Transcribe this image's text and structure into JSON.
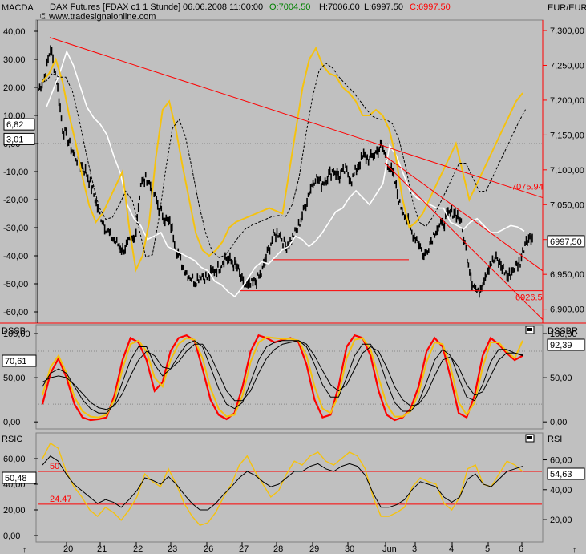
{
  "header": {
    "symbol": "DAX Futures [FDAX c1  1 Stunde]",
    "timestamp": "06.06.2008 11:00:00",
    "open": "O:7004.50",
    "high": "H:7006.00",
    "low": "L:6997.50",
    "close": "C:6997.50",
    "source": "© www.tradesignalonline.com"
  },
  "colors": {
    "price": "#000000",
    "macd": "#f5c20e",
    "white_line": "#ffffff",
    "trend": "#ff0000",
    "dssb_red": "#ff0000"
  },
  "panels": {
    "main": {
      "left_label": "MACDA",
      "right_label": "EUR/EUR"
    },
    "dss": {
      "left_label": "DSSB",
      "right_label": "DSSBR"
    },
    "rsi": {
      "left_label": "RSIC",
      "right_label": "RSI"
    }
  },
  "chart_data": [
    {
      "type": "line",
      "panel": "main",
      "x_ticks": [
        "20",
        "21",
        "22",
        "23",
        "26",
        "27",
        "28",
        "29",
        "30",
        "Jun",
        "3",
        "4",
        "5",
        "6"
      ],
      "left_axis": {
        "ticks": [
          "40,00",
          "30,00",
          "20,00",
          "10,00",
          "0,00",
          "-10,00",
          "-20,00",
          "-30,00",
          "-40,00",
          "-50,00",
          "-60,00"
        ],
        "range": [
          -64,
          44
        ]
      },
      "right_axis": {
        "ticks": [
          "7,300,00",
          "7,250,00",
          "7,200,00",
          "7,150,00",
          "7,100,00",
          "7,050,00",
          "7,000,00",
          "6,950,00",
          "6,900,00"
        ],
        "range": [
          6880,
          7315
        ]
      },
      "last_price": "6997,50",
      "macd_value": "6,82",
      "signal_value": "3,01",
      "levels": [
        {
          "label": "7075.94",
          "value": 7075.94
        },
        {
          "label": "6926.5",
          "value": 6926.5
        }
      ],
      "price_points": [
        7215,
        7232,
        7275,
        7230,
        7160,
        7140,
        7120,
        7108,
        7095,
        7070,
        7040,
        7020,
        7005,
        6995,
        6985,
        6995,
        7000,
        7080,
        7088,
        7070,
        7045,
        7030,
        7020,
        6985,
        6960,
        6948,
        6940,
        6950,
        6945,
        6955,
        6960,
        6975,
        6968,
        6960,
        6935,
        6932,
        6940,
        6950,
        6980,
        7005,
        7010,
        6990,
        7000,
        7015,
        7040,
        7070,
        7090,
        7080,
        7090,
        7100,
        7090,
        7100,
        7085,
        7105,
        7120,
        7115,
        7125,
        7135,
        7110,
        7090,
        7050,
        7035,
        7010,
        7000,
        6975,
        6995,
        7015,
        7020,
        7035,
        7040,
        7030,
        6985,
        6940,
        6922,
        6945,
        6965,
        6972,
        6960,
        6946,
        6960,
        6968,
        7002,
        7002
      ]
    },
    {
      "type": "line",
      "panel": "dss",
      "x_ticks": [
        "20",
        "21",
        "22",
        "23",
        "26",
        "27",
        "28",
        "29",
        "30",
        "Jun",
        "3",
        "4",
        "5",
        "6"
      ],
      "left_axis": {
        "ticks": [
          "100,00",
          "50,00",
          "0,00"
        ],
        "range": [
          -8,
          110
        ]
      },
      "right_axis": {
        "ticks": [
          "100,00",
          "50,00",
          "0,00"
        ],
        "range": [
          -8,
          110
        ]
      },
      "value_left": "70,61",
      "value_right": "92,39",
      "series": [
        {
          "values": [
            20,
            55,
            72,
            50,
            20,
            5,
            2,
            3,
            5,
            30,
            70,
            95,
            90,
            70,
            35,
            45,
            80,
            95,
            98,
            92,
            60,
            25,
            8,
            3,
            10,
            40,
            80,
            98,
            95,
            90,
            93,
            95,
            90,
            65,
            25,
            5,
            8,
            40,
            85,
            98,
            95,
            75,
            35,
            8,
            2,
            5,
            15,
            40,
            80,
            95,
            85,
            50,
            10,
            5,
            30,
            75,
            95,
            88,
            78,
            70,
            75
          ]
        },
        {
          "values": [
            30,
            62,
            75,
            55,
            28,
            12,
            6,
            5,
            8,
            25,
            60,
            88,
            92,
            80,
            50,
            40,
            70,
            88,
            95,
            93,
            72,
            38,
            15,
            6,
            8,
            30,
            68,
            90,
            96,
            95,
            94,
            94,
            92,
            75,
            40,
            15,
            10,
            30,
            72,
            93,
            95,
            82,
            50,
            20,
            6,
            6,
            12,
            32,
            68,
            90,
            88,
            62,
            22,
            8,
            22,
            62,
            90,
            90,
            80,
            72,
            92
          ]
        },
        {
          "values": [
            40,
            55,
            60,
            55,
            40,
            25,
            15,
            10,
            10,
            20,
            45,
            70,
            85,
            85,
            65,
            52,
            60,
            75,
            88,
            92,
            85,
            62,
            38,
            20,
            15,
            22,
            45,
            70,
            85,
            90,
            92,
            92,
            92,
            85,
            65,
            42,
            28,
            28,
            50,
            75,
            88,
            88,
            72,
            45,
            22,
            12,
            12,
            22,
            45,
            70,
            82,
            75,
            50,
            28,
            24,
            42,
            68,
            82,
            82,
            78,
            75
          ]
        },
        {
          "values": [
            45,
            50,
            52,
            50,
            42,
            32,
            22,
            16,
            14,
            18,
            32,
            52,
            70,
            80,
            75,
            62,
            60,
            68,
            80,
            88,
            88,
            75,
            55,
            35,
            24,
            24,
            35,
            55,
            72,
            82,
            88,
            90,
            92,
            88,
            75,
            58,
            42,
            35,
            42,
            60,
            78,
            85,
            80,
            62,
            40,
            25,
            18,
            20,
            32,
            52,
            70,
            74,
            62,
            42,
            30,
            34,
            52,
            70,
            78,
            78,
            76
          ]
        }
      ]
    },
    {
      "type": "line",
      "panel": "rsi",
      "x_ticks": [
        "20",
        "21",
        "22",
        "23",
        "26",
        "27",
        "28",
        "29",
        "30",
        "Jun",
        "3",
        "4",
        "5",
        "6"
      ],
      "left_axis": {
        "ticks": [
          "60,00",
          "40,00",
          "20,00",
          "0,00"
        ],
        "range": [
          -5,
          80
        ]
      },
      "right_axis": {
        "ticks": [
          "60,00",
          "40,00",
          "20,00"
        ],
        "range": [
          5,
          78
        ]
      },
      "levels": [
        {
          "label": "50",
          "value": 50
        },
        {
          "label": "24.47",
          "value": 24.47
        }
      ],
      "value_left": "50,48",
      "value_right": "54,63",
      "series": [
        {
          "values": [
            60,
            72,
            68,
            50,
            38,
            30,
            20,
            15,
            22,
            18,
            12,
            20,
            30,
            48,
            42,
            38,
            52,
            40,
            25,
            15,
            8,
            10,
            18,
            30,
            40,
            55,
            62,
            50,
            40,
            30,
            35,
            48,
            58,
            55,
            62,
            65,
            58,
            55,
            60,
            65,
            62,
            52,
            30,
            15,
            15,
            18,
            22,
            38,
            45,
            42,
            40,
            25,
            20,
            30,
            52,
            55,
            40,
            38,
            48,
            58,
            55,
            50
          ]
        },
        {
          "values": [
            55,
            62,
            58,
            48,
            40,
            35,
            30,
            25,
            28,
            26,
            22,
            28,
            35,
            45,
            43,
            40,
            46,
            40,
            32,
            25,
            20,
            20,
            25,
            32,
            38,
            45,
            50,
            47,
            42,
            38,
            40,
            45,
            50,
            50,
            54,
            56,
            52,
            50,
            54,
            56,
            54,
            47,
            33,
            22,
            22,
            24,
            28,
            36,
            42,
            40,
            38,
            30,
            26,
            30,
            44,
            48,
            40,
            38,
            44,
            50,
            52,
            54
          ]
        }
      ]
    }
  ]
}
